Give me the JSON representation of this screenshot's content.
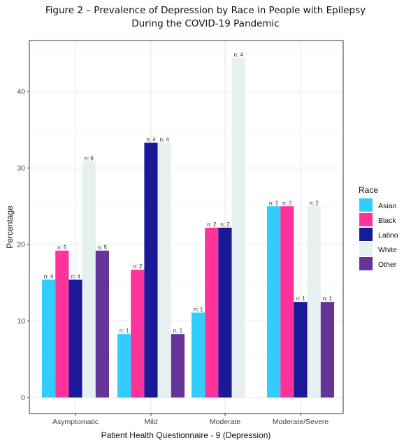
{
  "title_line1": "Figure 2 – Prevalence of Depression by Race in People with Epilepsy",
  "title_line2": "During the COVID-19 Pandemic",
  "chart_data": {
    "type": "bar",
    "title": "Figure 2 – Prevalence of Depression by Race in People with Epilepsy During the COVID-19 Pandemic",
    "xlabel": "Patient Health Questionnaire - 9 (Depression)",
    "ylabel": "Percentage",
    "ylim": [
      0,
      46
    ],
    "yticks": [
      0,
      10,
      20,
      30,
      40
    ],
    "grid": true,
    "legend_title": "Race",
    "legend_placement": "right",
    "categories": [
      "Asymptomatic",
      "Mild",
      "Moderate",
      "Moderate/Severe"
    ],
    "series": [
      {
        "name": "Asian",
        "color": "#33CCFF",
        "values": [
          15.4,
          8.3,
          11.1,
          25.0
        ],
        "labels": [
          "n: 4",
          "n: 1",
          "n: 1",
          "n: 2"
        ]
      },
      {
        "name": "Black",
        "color": "#FF3399",
        "values": [
          19.2,
          16.7,
          22.2,
          25.0
        ],
        "labels": [
          "n: 5",
          "n: 2",
          "n: 2",
          "n: 2"
        ]
      },
      {
        "name": "Latino",
        "color": "#1A1A99",
        "values": [
          15.4,
          33.3,
          22.2,
          12.5
        ],
        "labels": [
          "n: 4",
          "n: 4",
          "n: 2",
          "n: 1"
        ]
      },
      {
        "name": "White",
        "color": "#E6F0F0",
        "values": [
          30.8,
          33.3,
          44.4,
          25.0
        ],
        "labels": [
          "n: 8",
          "n: 4",
          "n: 4",
          "n: 2"
        ]
      },
      {
        "name": "Other",
        "color": "#663399",
        "values": [
          19.2,
          8.3,
          null,
          12.5
        ],
        "labels": [
          "n: 5",
          "n: 1",
          null,
          "n: 1"
        ]
      }
    ]
  }
}
